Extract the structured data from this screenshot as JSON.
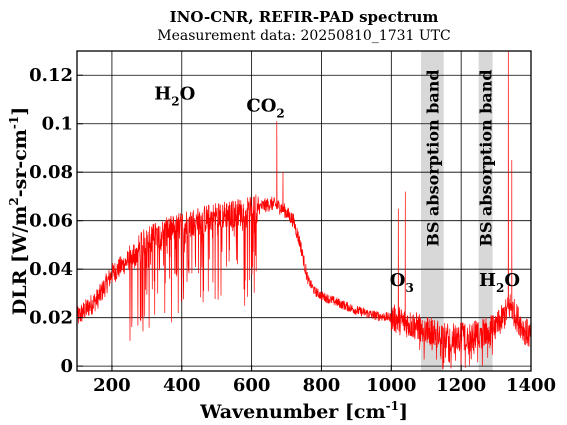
{
  "chart_data": {
    "type": "line",
    "title": "INO-CNR, REFIR-PAD spectrum",
    "subtitle": "Measurement data: 20250810_1731 UTC",
    "xlabel": {
      "base": "Wavenumber [cm",
      "sup": "-1",
      "tail": "]"
    },
    "ylabel": {
      "p1": "DLR [W/m",
      "sup1": "2",
      "p2": "-sr-cm",
      "sup2": "-1",
      "p3": "]"
    },
    "xlim": [
      100,
      1400
    ],
    "ylim": [
      -0.002,
      0.13
    ],
    "xticks": [
      200,
      400,
      600,
      800,
      1000,
      1200,
      1400
    ],
    "xtick_labels": [
      "200",
      "400",
      "600",
      "800",
      "1000",
      "1200",
      "1400"
    ],
    "yticks": [
      0,
      0.02,
      0.04,
      0.06,
      0.08,
      0.1,
      0.12
    ],
    "ytick_labels": [
      "0",
      "0.02",
      "0.04",
      "0.06",
      "0.08",
      "0.1",
      "0.12"
    ],
    "grid": true,
    "line_color": "#ff0000",
    "band_color": "#d8d8d8",
    "bands": [
      {
        "x0": 1085,
        "x1": 1150,
        "label": "BS absorption band"
      },
      {
        "x0": 1250,
        "x1": 1290,
        "label": "BS absorption band"
      }
    ],
    "annotations": [
      {
        "base": "H",
        "sub": "2",
        "tail": "O",
        "x": 380,
        "y": 0.11
      },
      {
        "base": "CO",
        "sub": "2",
        "tail": "",
        "x": 640,
        "y": 0.105
      },
      {
        "base": "O",
        "sub": "3",
        "tail": "",
        "x": 1030,
        "y": 0.033
      },
      {
        "base": "H",
        "sub": "2",
        "tail": "O",
        "x": 1310,
        "y": 0.033
      }
    ],
    "envelope": {
      "x": [
        100,
        130,
        160,
        200,
        250,
        300,
        350,
        400,
        450,
        500,
        550,
        600,
        630,
        660,
        690,
        720,
        740,
        760,
        780,
        800,
        850,
        900,
        950,
        1000,
        1020,
        1040,
        1060,
        1080,
        1160,
        1200,
        1240,
        1300,
        1320,
        1340,
        1360,
        1380,
        1400
      ],
      "y": [
        0.02,
        0.024,
        0.028,
        0.038,
        0.044,
        0.052,
        0.055,
        0.058,
        0.06,
        0.062,
        0.063,
        0.064,
        0.066,
        0.067,
        0.065,
        0.06,
        0.05,
        0.036,
        0.031,
        0.029,
        0.026,
        0.023,
        0.021,
        0.02,
        0.019,
        0.018,
        0.017,
        0.016,
        0.012,
        0.012,
        0.013,
        0.016,
        0.02,
        0.025,
        0.02,
        0.015,
        0.012
      ]
    },
    "peaks": [
      {
        "x": 672,
        "y": 0.101
      },
      {
        "x": 690,
        "y": 0.08
      },
      {
        "x": 1335,
        "y": 0.13
      },
      {
        "x": 1345,
        "y": 0.085
      },
      {
        "x": 1040,
        "y": 0.072
      },
      {
        "x": 1020,
        "y": 0.065
      }
    ]
  }
}
